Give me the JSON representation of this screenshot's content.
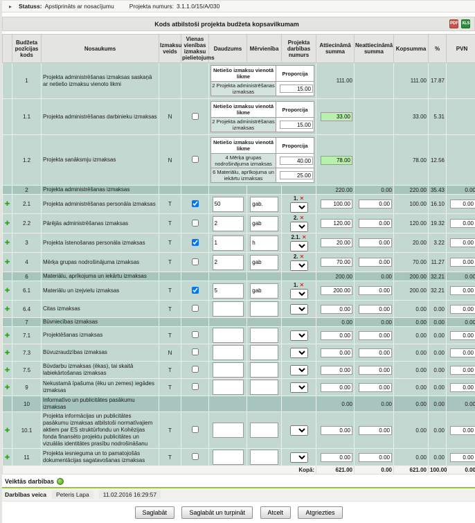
{
  "status_bar": {
    "status_label": "Statuss:",
    "status_value": "Apstiprināts ar nosacījumu",
    "project_label": "Projekta numurs:",
    "project_value": "3.1.1.0/15/A/030"
  },
  "title": "Kods atbilstoši projekta budžeta kopsavilkumam",
  "export_icons": {
    "pdf": "PDF",
    "excel": "XLS"
  },
  "columns": [
    "Budžeta pozīcijas kods",
    "Nosaukums",
    "Izmaksu veids",
    "Vienas vienības izmaksu pielietojums",
    "Daudzums",
    "Mērvienība",
    "Projekta darbības numurs",
    "Attiecināmā summa",
    "Neattiecināmā summa",
    "Kopsumma",
    "%",
    "PVN"
  ],
  "minitable_headers": {
    "rate": "Netiešo izmaksu vienotā likme",
    "proportion": "Proporcija"
  },
  "rows": [
    {
      "type": "indirect",
      "code": "1",
      "name": "Projekta administrēšanas izmaksas saskaņā ar netiešo izmaksu vienoto likmi",
      "veids": "",
      "checkbox": null,
      "minitable": [
        {
          "label": "2 Projekta administrēšanas izmaksas",
          "value": "15.00"
        }
      ],
      "att": "111.00",
      "att_style": "text",
      "neatt": "",
      "kops": "111.00",
      "pct": "17.87",
      "pvn": ""
    },
    {
      "type": "indirect",
      "code": "1.1",
      "name": "Projekta administrēšanas darbinieku izmaksas",
      "veids": "N",
      "checkbox": false,
      "minitable": [
        {
          "label": "2 Projekta administrēšanas izmaksas",
          "value": "15.00"
        }
      ],
      "att": "33.00",
      "att_style": "green",
      "neatt": "",
      "kops": "33.00",
      "pct": "5.31",
      "pvn": ""
    },
    {
      "type": "indirect",
      "code": "1.2",
      "name": "Projekta sanāksmju izmaksas",
      "veids": "N",
      "checkbox": false,
      "minitable": [
        {
          "label": "4 Mērķa grupas nodrošinājuma izmaksas",
          "value": "40.00"
        },
        {
          "label": "6 Materiālu, aprīkojuma un iekārtu izmaksas",
          "value": "25.00"
        }
      ],
      "att": "78.00",
      "att_style": "green",
      "neatt": "",
      "kops": "78.00",
      "pct": "12.56",
      "pvn": ""
    },
    {
      "type": "summary",
      "code": "2",
      "name": "Projekta administrēšanas izmaksas",
      "att": "220.00",
      "neatt": "0.00",
      "kops": "220.00",
      "pct": "35.43",
      "pvn": "0.00"
    },
    {
      "type": "detail",
      "code": "2.1",
      "name": "Projekta administrēšanas personāla izmaksas",
      "veids": "T",
      "checkbox": true,
      "qty": "50",
      "unit": "gab.",
      "activity": "1.",
      "att": "100.00",
      "neatt": "0.00",
      "kops": "100.00",
      "pct": "16.10",
      "pvn": "0.00"
    },
    {
      "type": "detail",
      "code": "2.2",
      "name": "Pārējās administrēšanas izmaksas",
      "veids": "T",
      "checkbox": false,
      "qty": "2",
      "unit": "gab",
      "activity": "2.",
      "att": "120.00",
      "neatt": "0.00",
      "kops": "120.00",
      "pct": "19.32",
      "pvn": "0.00"
    },
    {
      "type": "detail",
      "code": "3",
      "name": "Projekta īstenošanas personāla izmaksas",
      "veids": "T",
      "checkbox": true,
      "qty": "1",
      "unit": "h",
      "activity": "2.1.",
      "att": "20.00",
      "neatt": "0.00",
      "kops": "20.00",
      "pct": "3.22",
      "pvn": "0.00"
    },
    {
      "type": "detail",
      "code": "4",
      "name": "Mērķa grupas nodrošinājuma izmaksas",
      "veids": "T",
      "checkbox": false,
      "qty": "2",
      "unit": "gab",
      "activity": "2.",
      "att": "70.00",
      "neatt": "0.00",
      "kops": "70.00",
      "pct": "11.27",
      "pvn": "0.00"
    },
    {
      "type": "summary",
      "code": "6",
      "name": "Materiālu, aprīkojuma un iekārtu izmaksas",
      "att": "200.00",
      "neatt": "0.00",
      "kops": "200.00",
      "pct": "32.21",
      "pvn": "0.00"
    },
    {
      "type": "detail",
      "code": "6.1",
      "name": "Materiālu un izejvielu izmaksas",
      "veids": "T",
      "checkbox": true,
      "qty": "5",
      "unit": "gab",
      "activity": "1.",
      "att": "200.00",
      "neatt": "0.00",
      "kops": "200.00",
      "pct": "32.21",
      "pvn": "0.00"
    },
    {
      "type": "detail",
      "code": "6.4",
      "name": "Citas izmaksas",
      "veids": "T",
      "checkbox": false,
      "qty": "",
      "unit": "",
      "activity": "",
      "att": "0.00",
      "neatt": "0.00",
      "kops": "0.00",
      "pct": "0.00",
      "pvn": "0.00"
    },
    {
      "type": "summary",
      "code": "7",
      "name": "Būvniecības izmaksas",
      "att": "0.00",
      "neatt": "0.00",
      "kops": "0.00",
      "pct": "0.00",
      "pvn": "0.00"
    },
    {
      "type": "detail",
      "code": "7.1",
      "name": "Projektēšanas izmaksas",
      "veids": "T",
      "checkbox": false,
      "qty": "",
      "unit": "",
      "activity": "",
      "att": "0.00",
      "neatt": "0.00",
      "kops": "0.00",
      "pct": "0.00",
      "pvn": "0.00"
    },
    {
      "type": "detail",
      "code": "7.3",
      "name": "Būvuzraudzības izmaksas",
      "veids": "N",
      "checkbox": false,
      "qty": "",
      "unit": "",
      "activity": "",
      "att": "0.00",
      "neatt": "0.00",
      "kops": "0.00",
      "pct": "0.00",
      "pvn": "0.00"
    },
    {
      "type": "detail",
      "code": "7.5",
      "name": "Būvdarbu izmaksas (ēkas), tai skaitā labiekārtošanas izmaksas",
      "veids": "T",
      "checkbox": false,
      "qty": "",
      "unit": "",
      "activity": "",
      "att": "0.00",
      "neatt": "0.00",
      "kops": "0.00",
      "pct": "0.00",
      "pvn": "0.00"
    },
    {
      "type": "detail",
      "code": "9",
      "name": "Nekustamā īpašuma (ēku un zemes) iegādes izmaksas",
      "veids": "T",
      "checkbox": false,
      "qty": "",
      "unit": "",
      "activity": "",
      "att": "0.00",
      "neatt": "0.00",
      "kops": "0.00",
      "pct": "0.00",
      "pvn": "0.00"
    },
    {
      "type": "summary",
      "code": "10",
      "name": "Informatīvo un publicitātes pasākumu izmaksas",
      "att": "0.00",
      "neatt": "0.00",
      "kops": "0.00",
      "pct": "0.00",
      "pvn": "0.00"
    },
    {
      "type": "detail",
      "code": "10.1",
      "name": "Projekta informācijas un publicitātes pasākumu izmaksas atbilstoši normatīvajiem aktiem par ES struktūrfondu un Kohēzijas fonda finansēto projektu publicitātes un vizuālās identitātes prasību nodrošināšanu",
      "veids": "T",
      "checkbox": false,
      "qty": "",
      "unit": "",
      "activity": "",
      "att": "0.00",
      "neatt": "0.00",
      "kops": "0.00",
      "pct": "0.00",
      "pvn": "0.00"
    },
    {
      "type": "detail",
      "code": "11",
      "name": "Projekta iesnieguma un to pamatojošās dokumentācijas sagatavošanas izmaksas",
      "veids": "T",
      "checkbox": false,
      "qty": "",
      "unit": "",
      "activity": "",
      "att": "0.00",
      "neatt": "0.00",
      "kops": "0.00",
      "pct": "0.00",
      "pvn": "0.00"
    }
  ],
  "footer_totals": {
    "label": "Kopā:",
    "att": "621.00",
    "neatt": "0.00",
    "kops": "621.00",
    "pct": "100.00",
    "pvn": "0.00"
  },
  "actions_section": {
    "title": "Veiktās darbības",
    "performed_label": "Darbības veica",
    "performer": "Peteris Lapa",
    "timestamp": "11.02.2016 16:29:57"
  },
  "buttons": {
    "save": "Saglabāt",
    "save_continue": "Saglabāt un turpināt",
    "cancel": "Atcelt",
    "back": "Atgriezties"
  },
  "colors": {
    "row_light": "#c3d8d1",
    "row_dark": "#a7c5bd",
    "highlight_green": "#b9f0ae",
    "accent_line": "#9bc13c"
  }
}
